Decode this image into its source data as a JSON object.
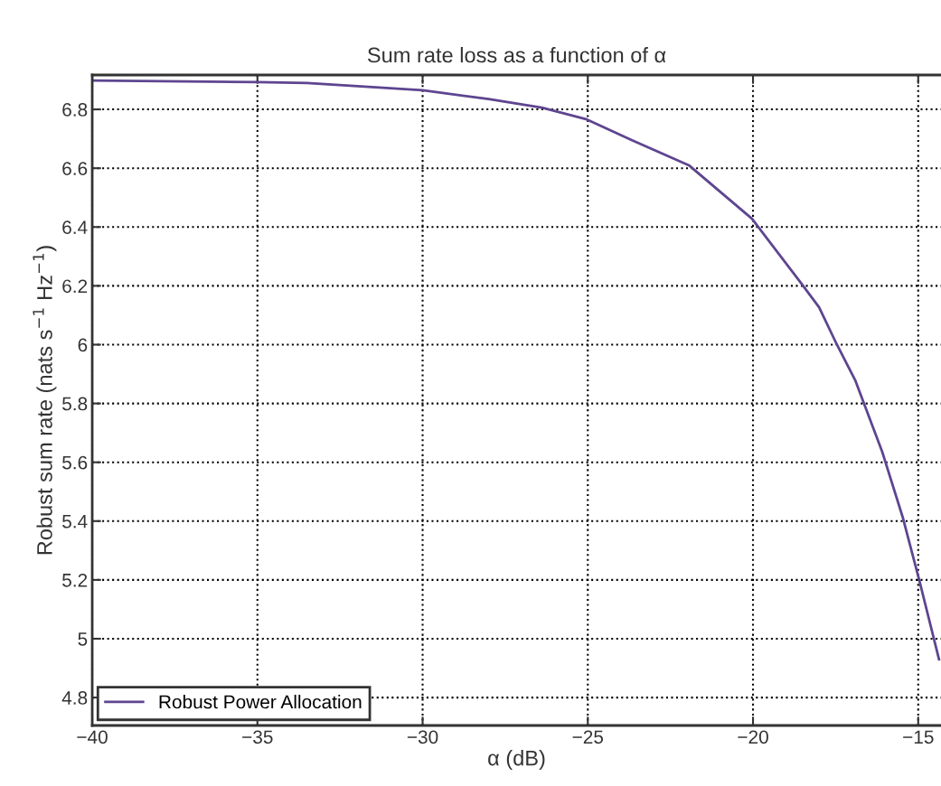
{
  "chart_data": {
    "type": "line",
    "title": "Sum rate loss as a function of α",
    "xlabel": "α (dB)",
    "ylabel": "Robust sum rate (nats s$^{−1}$ Hz$^{−1}$)",
    "xlim": [
      -40,
      -14.31
    ],
    "xticks": [
      -40,
      -35,
      -30,
      -25,
      -20,
      -15
    ],
    "ylim": [
      4.705,
      6.917
    ],
    "yticks": [
      4.8,
      5,
      5.2,
      5.4,
      5.6,
      5.8,
      6,
      6.2,
      6.4,
      6.6,
      6.8
    ],
    "grid": true,
    "legend": "bottom left",
    "marker": "none",
    "line_style": "solid",
    "series": [
      {
        "name": "Robust Power Allocation",
        "color": "#5e4590",
        "x": [
          -40,
          -35,
          -33.5,
          -30,
          -28,
          -26.39,
          -25.03,
          -23.66,
          -21.94,
          -20.03,
          -18.55,
          -18.0,
          -17.46,
          -16.91,
          -16.09,
          -15.46,
          -14.97,
          -14.37
        ],
        "values": [
          6.898,
          6.893,
          6.89,
          6.865,
          6.835,
          6.806,
          6.766,
          6.695,
          6.61,
          6.428,
          6.21,
          6.127,
          6.0,
          5.88,
          5.636,
          5.41,
          5.2,
          4.93
        ]
      }
    ]
  }
}
